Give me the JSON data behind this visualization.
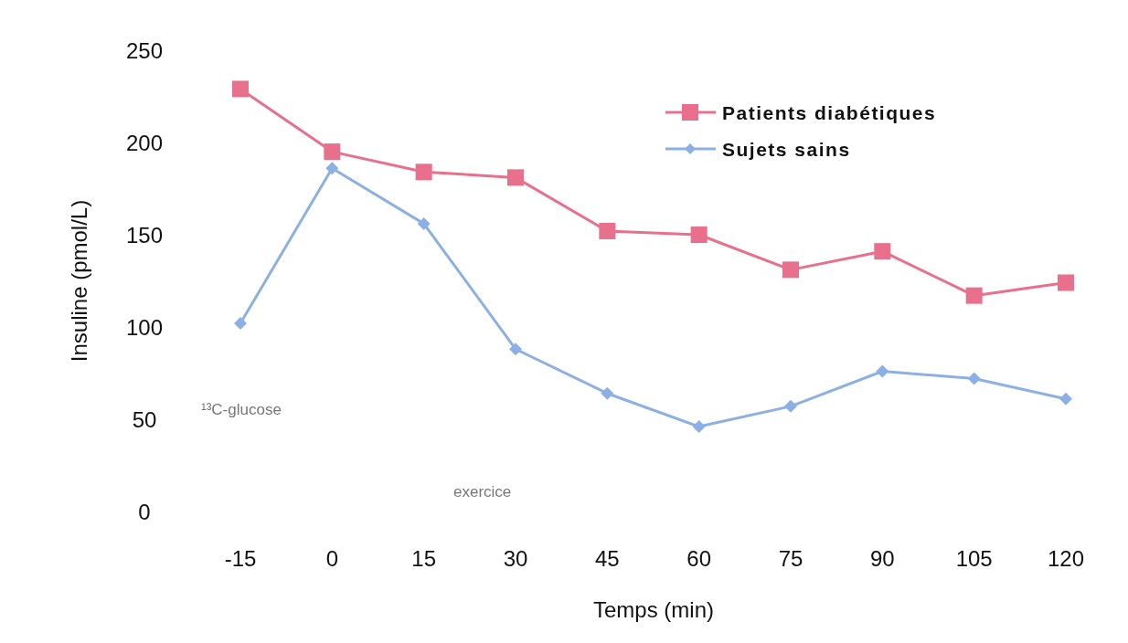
{
  "chart_data": {
    "type": "line",
    "xlabel": "Temps (min)",
    "ylabel": "Insuline (pmol/L)",
    "categories": [
      "-15",
      "0",
      "15",
      "30",
      "45",
      "60",
      "75",
      "90",
      "105",
      "120"
    ],
    "series": [
      {
        "name": "Patients diabétiques",
        "color": "#e8708c",
        "marker": "square",
        "values": [
          229,
          195,
          184,
          181,
          152,
          150,
          131,
          141,
          117,
          124
        ]
      },
      {
        "name": "Sujets sains",
        "color": "#8cb0e6",
        "marker": "diamond",
        "values": [
          102,
          186,
          156,
          88,
          64,
          46,
          57,
          76,
          72,
          61
        ]
      }
    ],
    "ylim": [
      0,
      250
    ],
    "yticks": [
      0,
      50,
      100,
      150,
      200,
      250
    ],
    "grid": false,
    "legend": "top right",
    "line_style": "solid",
    "annotations": [
      "¹³C-glucose",
      "exercice"
    ]
  }
}
